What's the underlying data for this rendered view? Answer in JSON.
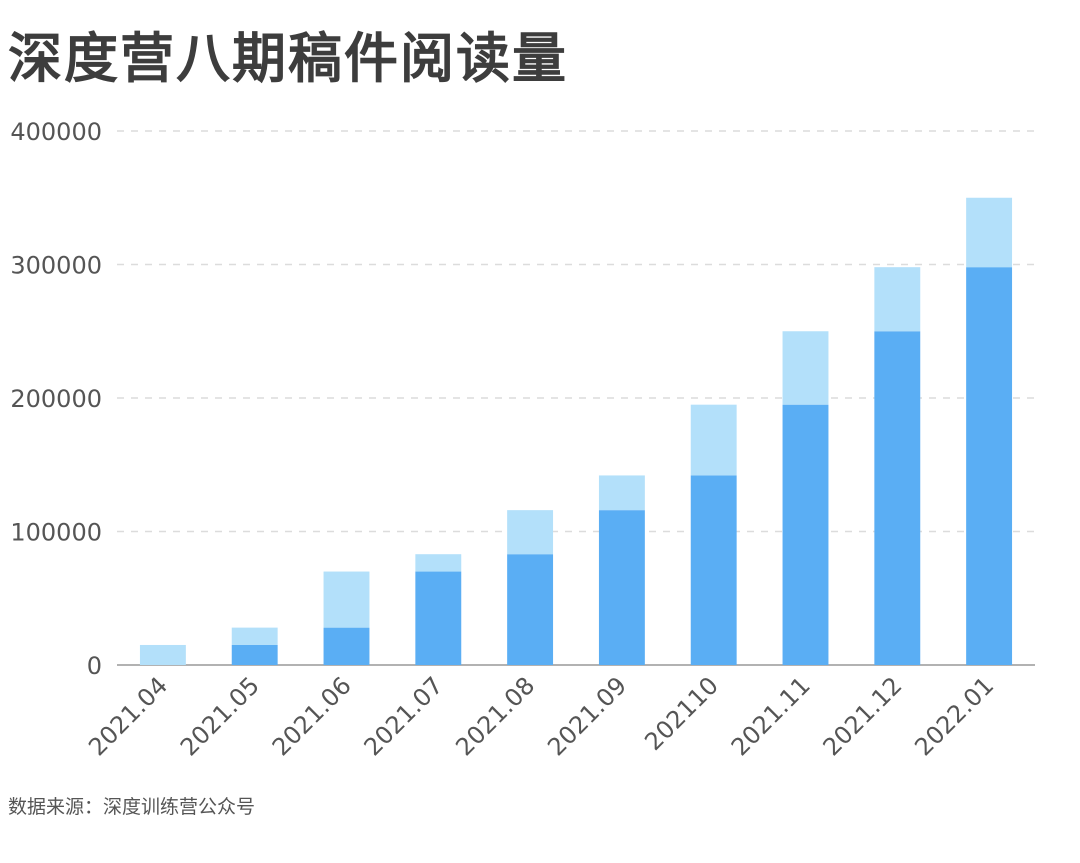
{
  "title": "深度营八期稿件阅读量",
  "source": "数据来源：深度训练营公众号",
  "chart_data": {
    "type": "bar",
    "stacked": true,
    "title": "深度营八期稿件阅读量",
    "categories": [
      "2021.04",
      "2021.05",
      "2021.06",
      "2021.07",
      "2021.08",
      "2021.09",
      "202110",
      "2021.11",
      "2021.12",
      "2022.01"
    ],
    "series": [
      {
        "values": [
          0,
          15000,
          28000,
          70000,
          83000,
          116000,
          142000,
          195000,
          250000,
          298000
        ],
        "color": "#5aaef4"
      },
      {
        "values": [
          15000,
          13000,
          42000,
          13000,
          33000,
          26000,
          53000,
          55000,
          48000,
          52000
        ],
        "color": "#b3e0fa"
      }
    ],
    "ylim": [
      0,
      400000
    ],
    "yticks": [
      "0",
      "100000",
      "200000",
      "300000",
      "400000"
    ],
    "grid": true,
    "legend": "none"
  }
}
